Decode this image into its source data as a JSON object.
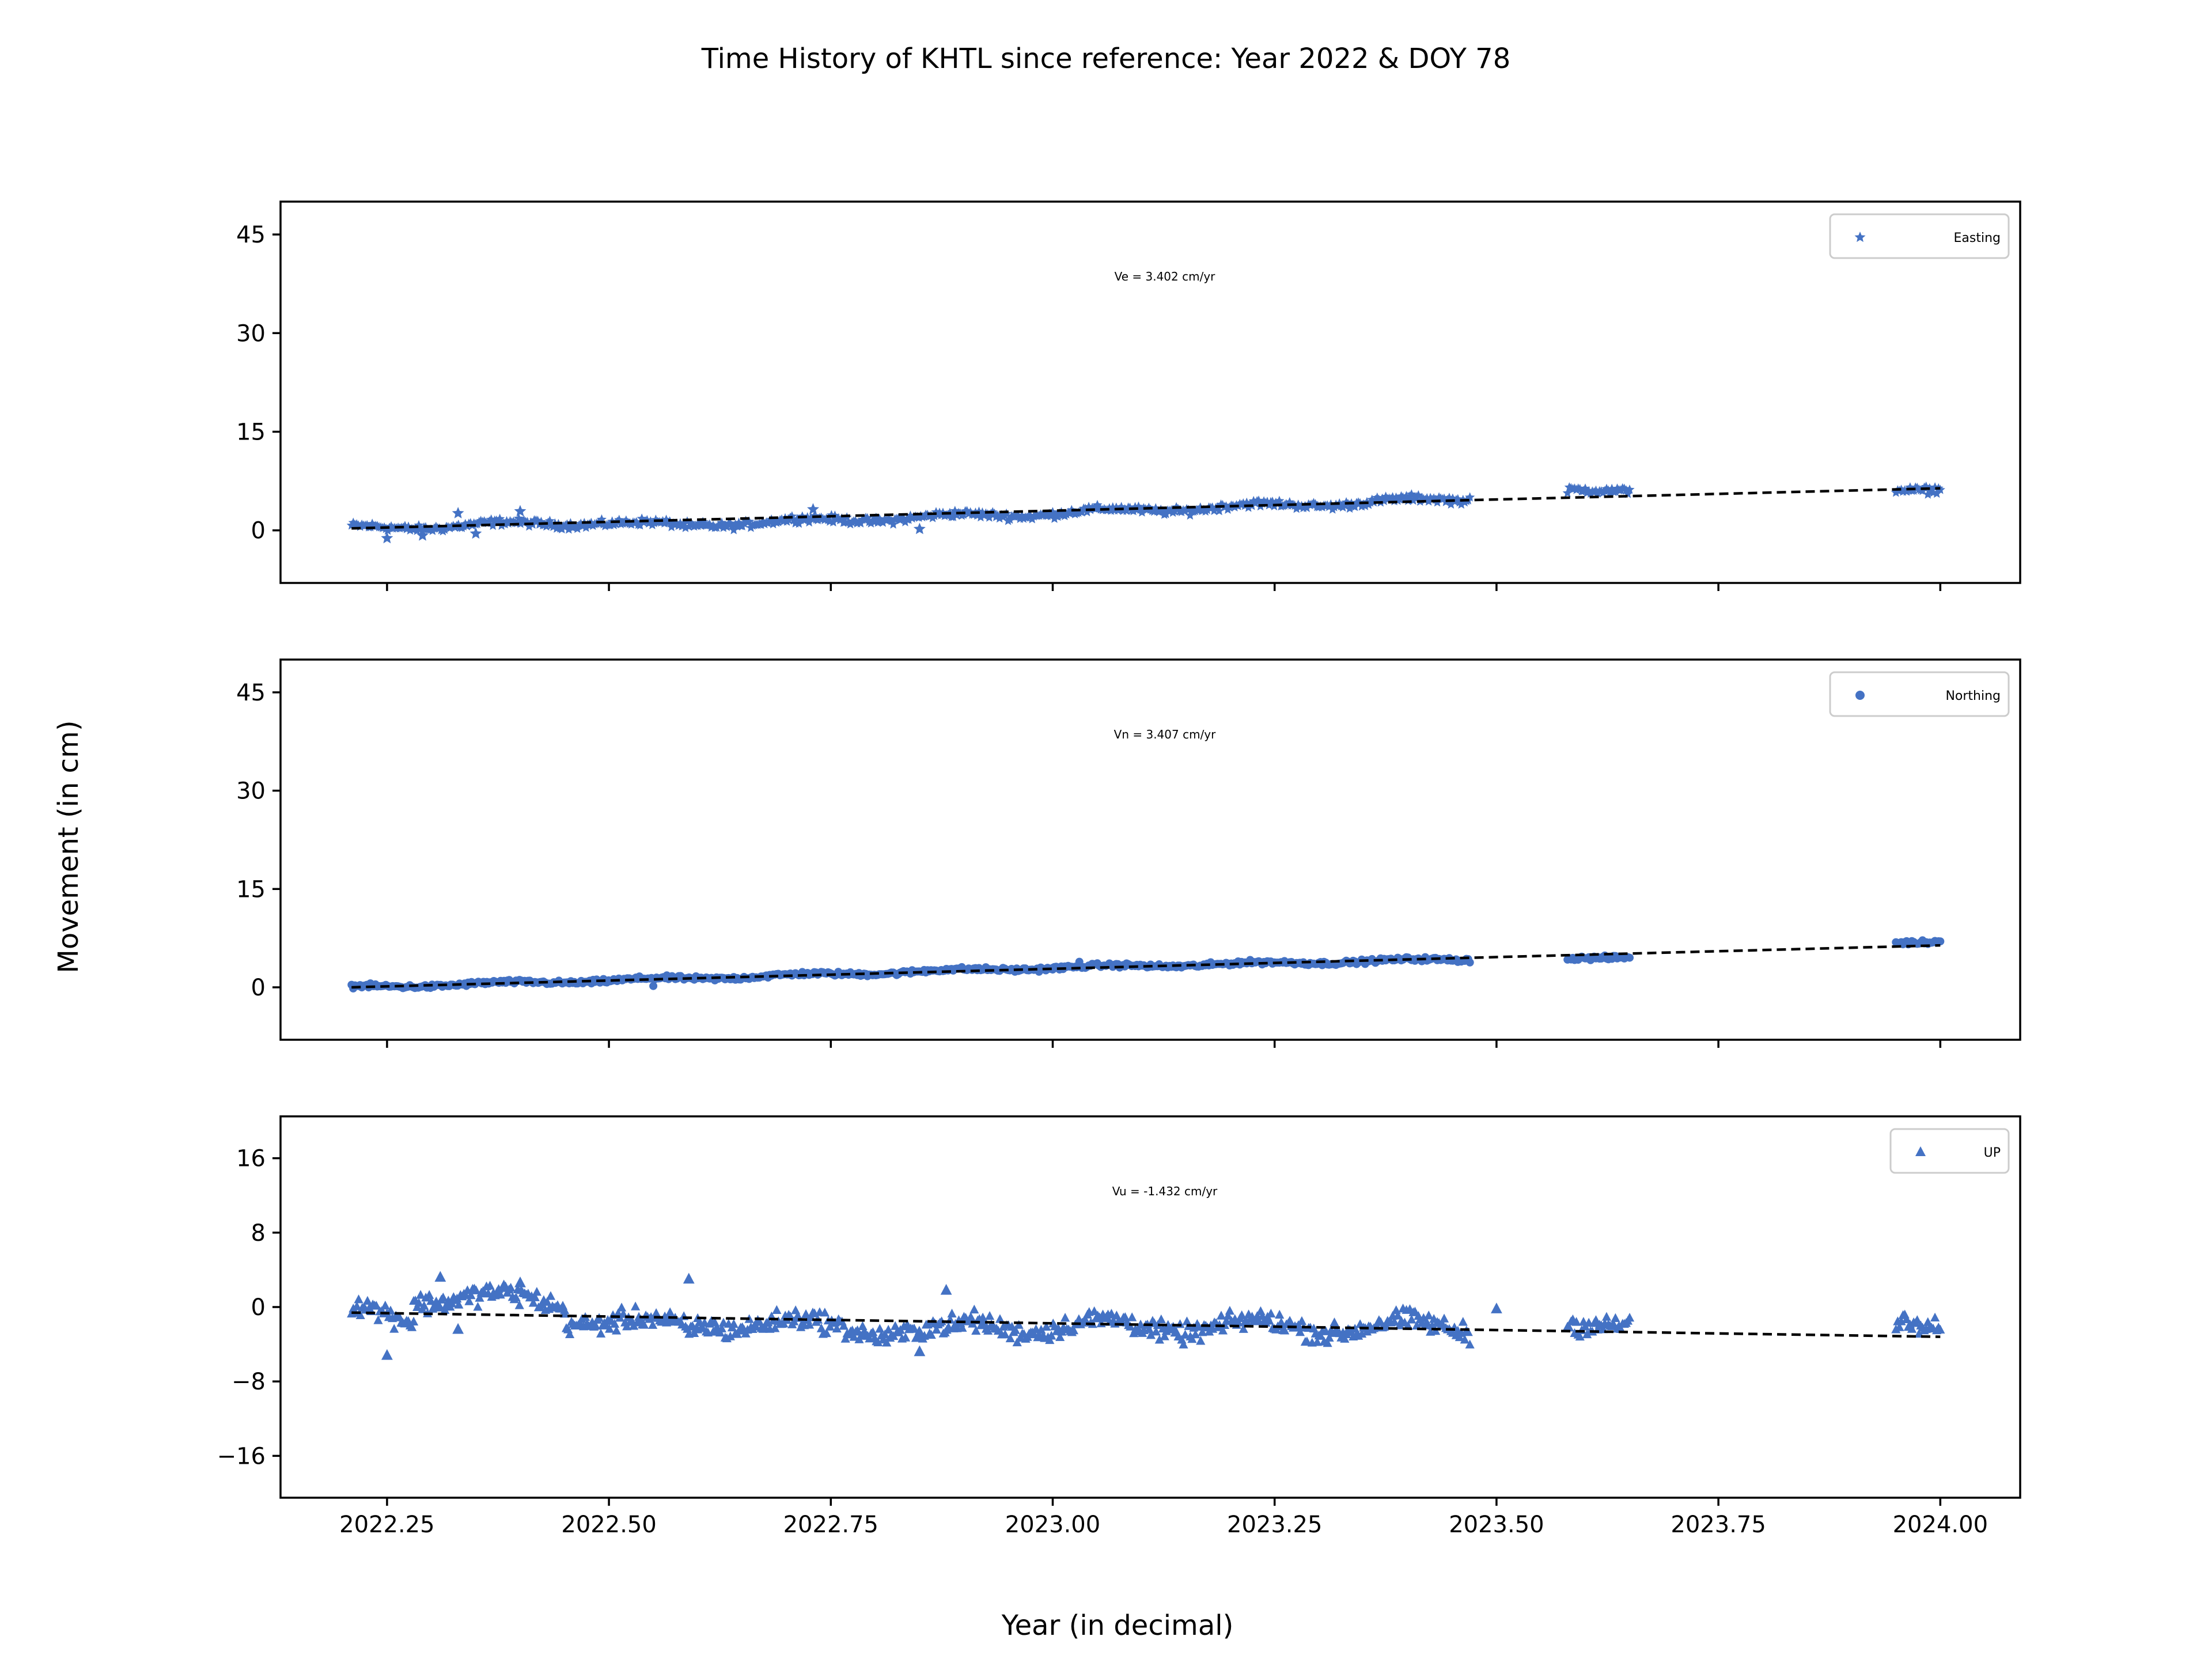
{
  "figure": {
    "title": "Time History of KHTL since reference: Year 2022 & DOY 78",
    "ylabel": "Movement (in cm)",
    "xlabel": "Year (in decimal)"
  },
  "chart_data": [
    {
      "type": "scatter",
      "series": [
        {
          "name": "Easting",
          "marker": "star",
          "color": "#4472c4"
        }
      ],
      "annotation": "Ve =  3.402 cm/yr",
      "xlim": [
        2022.13,
        2024.09
      ],
      "ylim": [
        -8,
        50
      ],
      "yticks": [
        0,
        15,
        30,
        45
      ],
      "xticks": [
        2022.25,
        2022.5,
        2022.75,
        2023.0,
        2023.25,
        2023.5,
        2023.75,
        2024.0
      ],
      "trend": {
        "x": [
          2022.21,
          2024.0
        ],
        "y": [
          0.3,
          6.4
        ],
        "style": "dashed",
        "color": "#000000"
      },
      "segments": [
        [
          2022.21,
          2022.48,
          0.3,
          1.2
        ],
        [
          2022.48,
          2022.6,
          1.2,
          0.6
        ],
        [
          2022.6,
          2023.0,
          0.9,
          2.6
        ],
        [
          2023.0,
          2023.47,
          2.6,
          4.8
        ],
        [
          2023.58,
          2023.65,
          5.8,
          6.4
        ],
        [
          2023.95,
          2024.0,
          6.2,
          6.6
        ]
      ],
      "outliers": [
        [
          2022.25,
          -1.2
        ],
        [
          2022.29,
          -0.8
        ],
        [
          2022.33,
          2.6
        ],
        [
          2022.4,
          2.9
        ],
        [
          2022.35,
          -0.5
        ],
        [
          2022.85,
          0.2
        ],
        [
          2022.73,
          3.2
        ]
      ],
      "scatter_spread": 1.6,
      "trend_noise": 0.8
    },
    {
      "type": "scatter",
      "series": [
        {
          "name": "Northing",
          "marker": "circle",
          "color": "#4472c4"
        }
      ],
      "annotation": "Vn =  3.407 cm/yr",
      "xlim": [
        2022.13,
        2024.09
      ],
      "ylim": [
        -8,
        50
      ],
      "yticks": [
        0,
        15,
        30,
        45
      ],
      "xticks": [
        2022.25,
        2022.5,
        2022.75,
        2023.0,
        2023.25,
        2023.5,
        2023.75,
        2024.0
      ],
      "trend": {
        "x": [
          2022.21,
          2024.0
        ],
        "y": [
          0.0,
          6.4
        ],
        "style": "dashed",
        "color": "#000000"
      },
      "segments": [
        [
          2022.21,
          2022.6,
          0.0,
          1.4
        ],
        [
          2022.6,
          2023.0,
          1.4,
          3.0
        ],
        [
          2023.0,
          2023.47,
          3.0,
          4.3
        ],
        [
          2023.58,
          2023.65,
          4.2,
          4.8
        ],
        [
          2023.95,
          2024.0,
          6.8,
          7.2
        ]
      ],
      "outliers": [
        [
          2023.03,
          3.9
        ],
        [
          2022.55,
          0.2
        ]
      ],
      "scatter_spread": 0.9,
      "trend_noise": 0.4
    },
    {
      "type": "scatter",
      "series": [
        {
          "name": "UP",
          "marker": "triangle",
          "color": "#4472c4"
        }
      ],
      "annotation": "Vu = -1.432 cm/yr",
      "xlim": [
        2022.13,
        2024.09
      ],
      "ylim": [
        -20.5,
        20.5
      ],
      "yticks": [
        -16,
        -8,
        0,
        8,
        16
      ],
      "ytick_labels": [
        "−16",
        "−8",
        "0",
        "8",
        "16"
      ],
      "xticks": [
        2022.25,
        2022.5,
        2022.75,
        2023.0,
        2023.25,
        2023.5,
        2023.75,
        2024.0
      ],
      "xtick_labels": [
        "2022.25",
        "2022.50",
        "2022.75",
        "2023.00",
        "2023.25",
        "2023.50",
        "2023.75",
        "2024.00"
      ],
      "trend": {
        "x": [
          2022.21,
          2024.0
        ],
        "y": [
          -0.6,
          -3.2
        ],
        "style": "dashed",
        "color": "#000000"
      },
      "segments": [
        [
          2022.21,
          2022.28,
          -0.5,
          -1.0
        ],
        [
          2022.28,
          2022.45,
          1.2,
          0.5
        ],
        [
          2022.45,
          2022.6,
          -1.0,
          -2.5
        ],
        [
          2022.6,
          2022.9,
          -1.5,
          -2.8
        ],
        [
          2022.9,
          2023.47,
          -2.0,
          -2.2
        ],
        [
          2023.58,
          2023.65,
          -2.8,
          -1.0
        ],
        [
          2023.95,
          2024.0,
          -1.5,
          -1.5
        ]
      ],
      "outliers": [
        [
          2022.25,
          -5.2
        ],
        [
          2022.31,
          3.2
        ],
        [
          2022.4,
          2.6
        ],
        [
          2022.59,
          3.0
        ],
        [
          2022.88,
          1.8
        ],
        [
          2022.85,
          -4.8
        ],
        [
          2022.33,
          -2.4
        ],
        [
          2023.5,
          -0.2
        ]
      ],
      "scatter_spread": 3.2,
      "trend_noise": 1.6
    }
  ]
}
